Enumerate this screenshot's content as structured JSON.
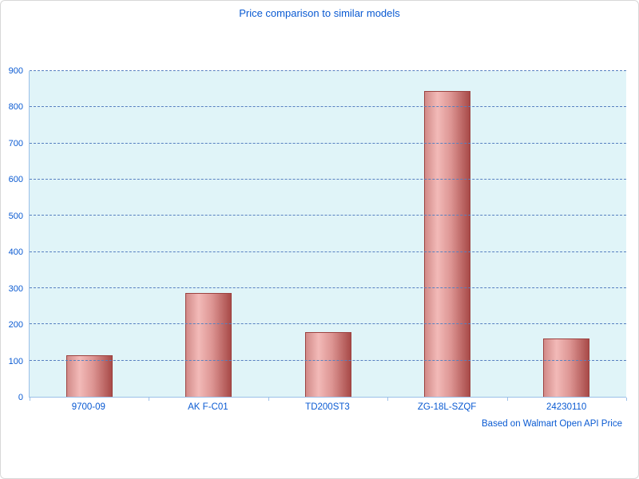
{
  "title": "Price comparison to similar models",
  "footer": "Based on Walmart Open API Price",
  "colors": {
    "title_text": "#0a5ad2",
    "axis_text": "#0a5ad2",
    "gridline": "#567fc0",
    "plot_background": "#e0f4f8",
    "axis_line": "#9bc0e8",
    "bar_light": "#f2bab8",
    "bar_mid": "#d28a88",
    "bar_dark": "#a84a48",
    "bar_border": "#9c4240"
  },
  "chart_data": {
    "type": "bar",
    "title": "Price comparison to similar models",
    "categories": [
      "9700-09",
      "AK F-C01",
      "TD200ST3",
      "ZG-18L-SZQF",
      "24230110"
    ],
    "values": [
      115,
      287,
      178,
      845,
      160
    ],
    "xlabel": "",
    "ylabel": "",
    "ylim": [
      0,
      900
    ],
    "ytick_step": 100,
    "yticks": [
      0,
      100,
      200,
      300,
      400,
      500,
      600,
      700,
      800,
      900
    ],
    "grid": "horizontal-dashed",
    "legend": "none",
    "annotation": "Based on Walmart Open API Price"
  }
}
